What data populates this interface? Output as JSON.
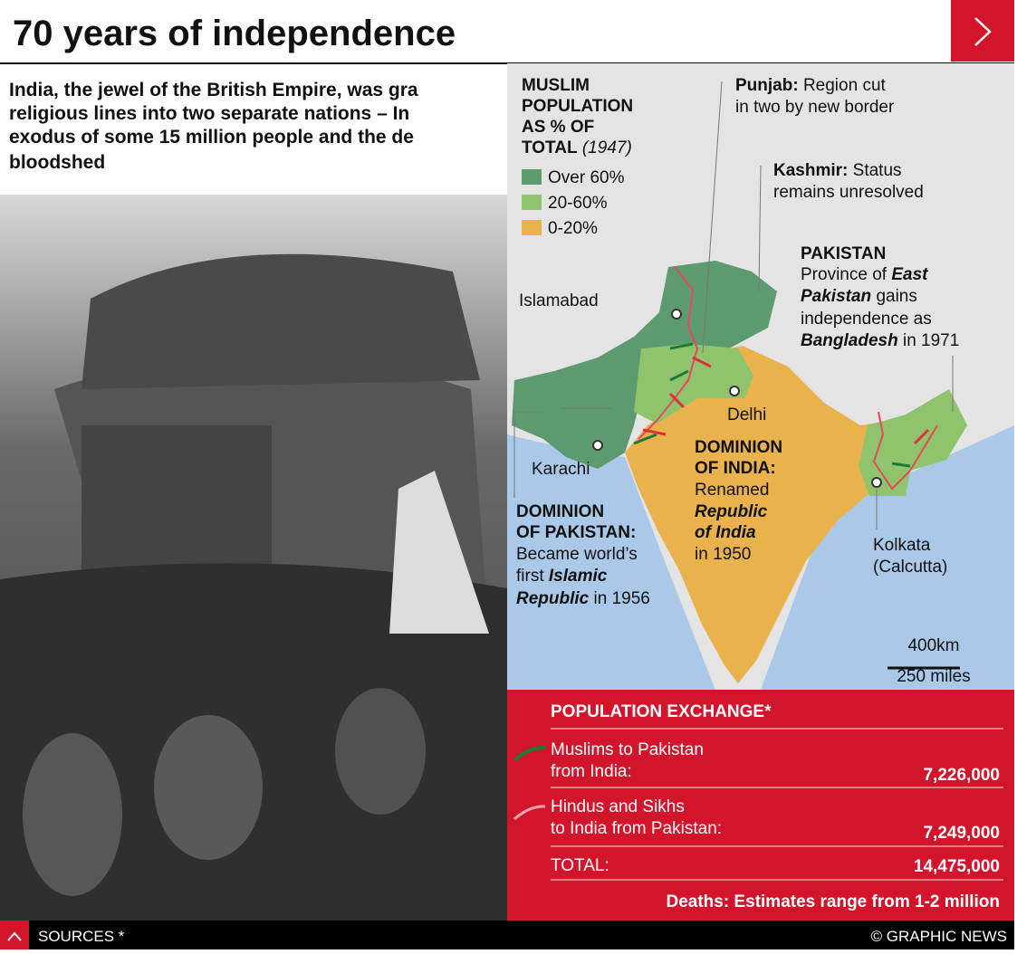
{
  "header": {
    "title": "70 years of independence"
  },
  "intro": {
    "lines": [
      "India, the jewel of the British Empire, was gra",
      "religious lines into two separate nations – In",
      "exodus of some 15 million people and the de",
      "bloodshed"
    ]
  },
  "legend": {
    "title_lines": [
      "MUSLIM",
      "POPULATION",
      "AS % OF",
      "TOTAL"
    ],
    "year": "(1947)",
    "items": [
      {
        "label": "Over 60%",
        "color": "#5e9a6f"
      },
      {
        "label": "20-60%",
        "color": "#8fc46c"
      },
      {
        "label": "0-20%",
        "color": "#e9b24c"
      }
    ]
  },
  "annotations": {
    "punjab": {
      "name": "Punjab:",
      "lines": [
        "Region cut",
        "in two by new border"
      ]
    },
    "kashmir": {
      "name": "Kashmir:",
      "lines": [
        "Status",
        "remains unresolved"
      ]
    },
    "east_pakistan": {
      "name": "PAKISTAN",
      "l1": "Province of",
      "l1b": "East",
      "l2b": "Pakistan",
      "l2": "gains",
      "l3": "independence as",
      "l4b": "Bangladesh",
      "l4": "in 1971"
    },
    "india": {
      "name_lines": [
        "DOMINION",
        "OF INDIA:"
      ],
      "l1": "Renamed",
      "l2b": "Republic",
      "l3b": "of India",
      "l4": "in 1950"
    },
    "pakistan": {
      "name_lines": [
        "DOMINION",
        "OF PAKISTAN:"
      ],
      "l1": "Became world’s",
      "l2": "first",
      "l2b": "Islamic",
      "l3b": "Republic",
      "l3": "in 1956"
    }
  },
  "cities": {
    "islamabad": "Islamabad",
    "delhi": "Delhi",
    "karachi": "Karachi",
    "kolkata": [
      "Kolkata",
      "(Calcutta)"
    ]
  },
  "scale": {
    "km": "400km",
    "miles": "250 miles"
  },
  "exchange": {
    "title": "POPULATION EXCHANGE*",
    "rows": [
      {
        "lines": [
          "Muslims to Pakistan",
          "from India:"
        ],
        "value": "7,226,000"
      },
      {
        "lines": [
          "Hindus and Sikhs",
          "to India from Pakistan:"
        ],
        "value": "7,249,000"
      }
    ],
    "total": {
      "label": "TOTAL:",
      "value": "14,475,000"
    },
    "deaths": "Deaths: Estimates range from 1-2 million"
  },
  "footer": {
    "sources": "SOURCES *",
    "credit": "© GRAPHIC NEWS"
  }
}
